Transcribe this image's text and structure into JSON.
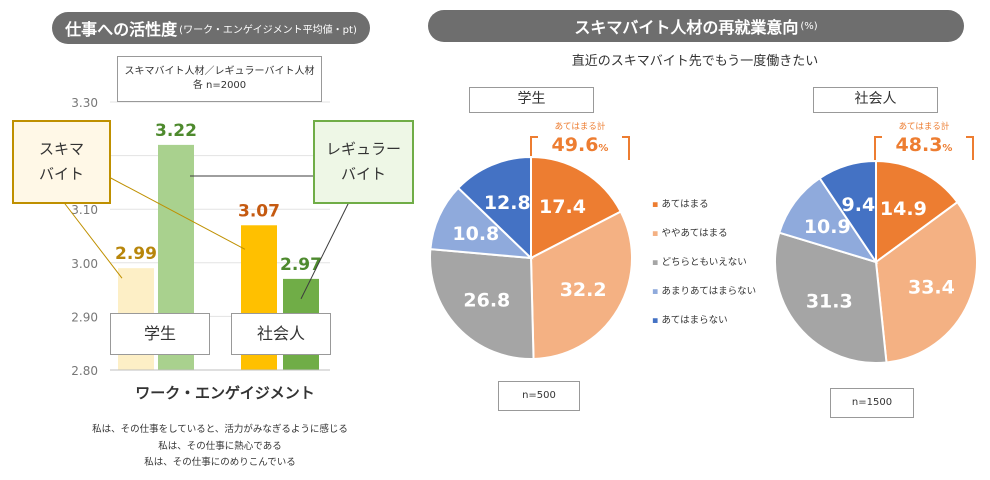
{
  "left": {
    "title": "仕事への活性度",
    "title_note": "(ワーク・エンゲイジメント平均値・pt)",
    "legend_box": {
      "line1": "スキマバイト人材／レギュラーバイト人材",
      "line2": "各 n=2000"
    },
    "callout_sukima": {
      "line1": "スキマ",
      "line2": "バイト"
    },
    "callout_regular": {
      "line1": "レギュラー",
      "line2": "バイト"
    },
    "group_label_student": "学生",
    "group_label_worker": "社会人",
    "xlabel": "ワーク・エンゲイジメント",
    "notes": [
      "私は、その仕事をしていると、活力がみなぎるように感じる",
      "私は、その仕事に熱心である",
      "私は、その仕事にのめりこんでいる"
    ]
  },
  "right": {
    "title": "スキマバイト人材の再就業意向",
    "title_unit": "(%)",
    "subtitle": "直近のスキマバイト先でもう一度働きたい",
    "student_label": "学生",
    "worker_label": "社会人",
    "agree_total_label": "あてはまる計",
    "student_total": "49.6",
    "worker_total": "48.3",
    "percent_sign": "%",
    "student_n": "n=500",
    "worker_n": "n=1500",
    "legend": [
      "あてはまる",
      "ややあてはまる",
      "どちらともいえない",
      "あまりあてはまらない",
      "あてはまらない"
    ]
  },
  "colors": {
    "pill_bg": "#6e6e6e",
    "sukima_student": "#fdefc6",
    "regular_student": "#a9d18e",
    "sukima_worker": "#ffc000",
    "regular_worker": "#70ad47",
    "label_sukima_student": "#b8860b",
    "label_regular_student": "#4e8a2e",
    "label_sukima_worker": "#c55a11",
    "label_regular_worker": "#4e8a2e",
    "pie": [
      "#ed7d31",
      "#f4b183",
      "#a5a5a5",
      "#8faadc",
      "#4472c4"
    ],
    "total_color": "#ed7d31"
  },
  "chart_data": [
    {
      "type": "bar",
      "title": "仕事への活性度",
      "categories": [
        "学生",
        "社会人"
      ],
      "series": [
        {
          "name": "スキマバイト",
          "values": [
            2.99,
            3.07
          ]
        },
        {
          "name": "レギュラーバイト",
          "values": [
            3.22,
            2.97
          ]
        }
      ],
      "xlabel": "ワーク・エンゲイジメント",
      "ylabel": "",
      "ylim": [
        2.8,
        3.3
      ],
      "yticks": [
        "2.80",
        "2.90",
        "3.00",
        "3.10",
        "3.20",
        "3.30"
      ],
      "value_labels": [
        [
          "2.99",
          "3.07"
        ],
        [
          "3.22",
          "2.97"
        ]
      ]
    },
    {
      "type": "pie",
      "title": "学生",
      "labels": [
        "あてはまる",
        "ややあてはまる",
        "どちらともいえない",
        "あまりあてはまらない",
        "あてはまらない"
      ],
      "values": [
        17.4,
        32.2,
        26.8,
        10.8,
        12.8
      ]
    },
    {
      "type": "pie",
      "title": "社会人",
      "labels": [
        "あてはまる",
        "ややあてはまる",
        "どちらともいえない",
        "あまりあてはまらない",
        "あてはまらない"
      ],
      "values": [
        14.9,
        33.4,
        31.3,
        10.9,
        9.4
      ]
    }
  ]
}
